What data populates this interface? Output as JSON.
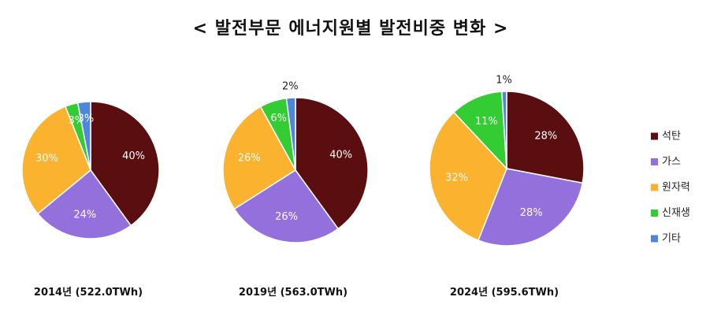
{
  "title": "< 발전부문 에너지원별 발전비중 변화 >",
  "chart_data": {
    "type": "pie",
    "categories": [
      "석탄",
      "가스",
      "원자력",
      "신재생",
      "기타"
    ],
    "colors": [
      "#5b0e10",
      "#9370db",
      "#fbb32f",
      "#33cc33",
      "#4f86d9"
    ],
    "legend_position": "right",
    "charts": [
      {
        "caption": "2014년 (522.0TWh)",
        "values": [
          40,
          24,
          30,
          3,
          3
        ],
        "labels": [
          "40%",
          "24%",
          "30%",
          "3%",
          "3%"
        ]
      },
      {
        "caption": "2019년 (563.0TWh)",
        "values": [
          40,
          26,
          26,
          6,
          2
        ],
        "labels": [
          "40%",
          "26%",
          "26%",
          "6%",
          "2%"
        ]
      },
      {
        "caption": "2024년 (595.6TWh)",
        "values": [
          28,
          28,
          32,
          11,
          1
        ],
        "labels": [
          "28%",
          "28%",
          "32%",
          "11%",
          "1%"
        ]
      }
    ]
  }
}
